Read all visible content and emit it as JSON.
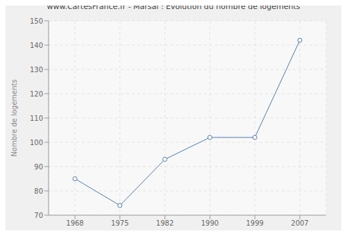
{
  "chart_data": {
    "type": "line",
    "title": "www.CartesFrance.fr - Marsal : Evolution du nombre de logements",
    "y_label": "Nombre de logements",
    "categories": [
      "1968",
      "1975",
      "1982",
      "1990",
      "1999",
      "2007"
    ],
    "values": [
      85,
      74,
      93,
      102,
      102,
      142
    ],
    "color": "#4f7aa6",
    "marker": "circle",
    "ylim": [
      70,
      150
    ],
    "yticks": [
      70,
      80,
      90,
      100,
      110,
      120,
      130,
      140,
      150
    ],
    "grid": true
  }
}
